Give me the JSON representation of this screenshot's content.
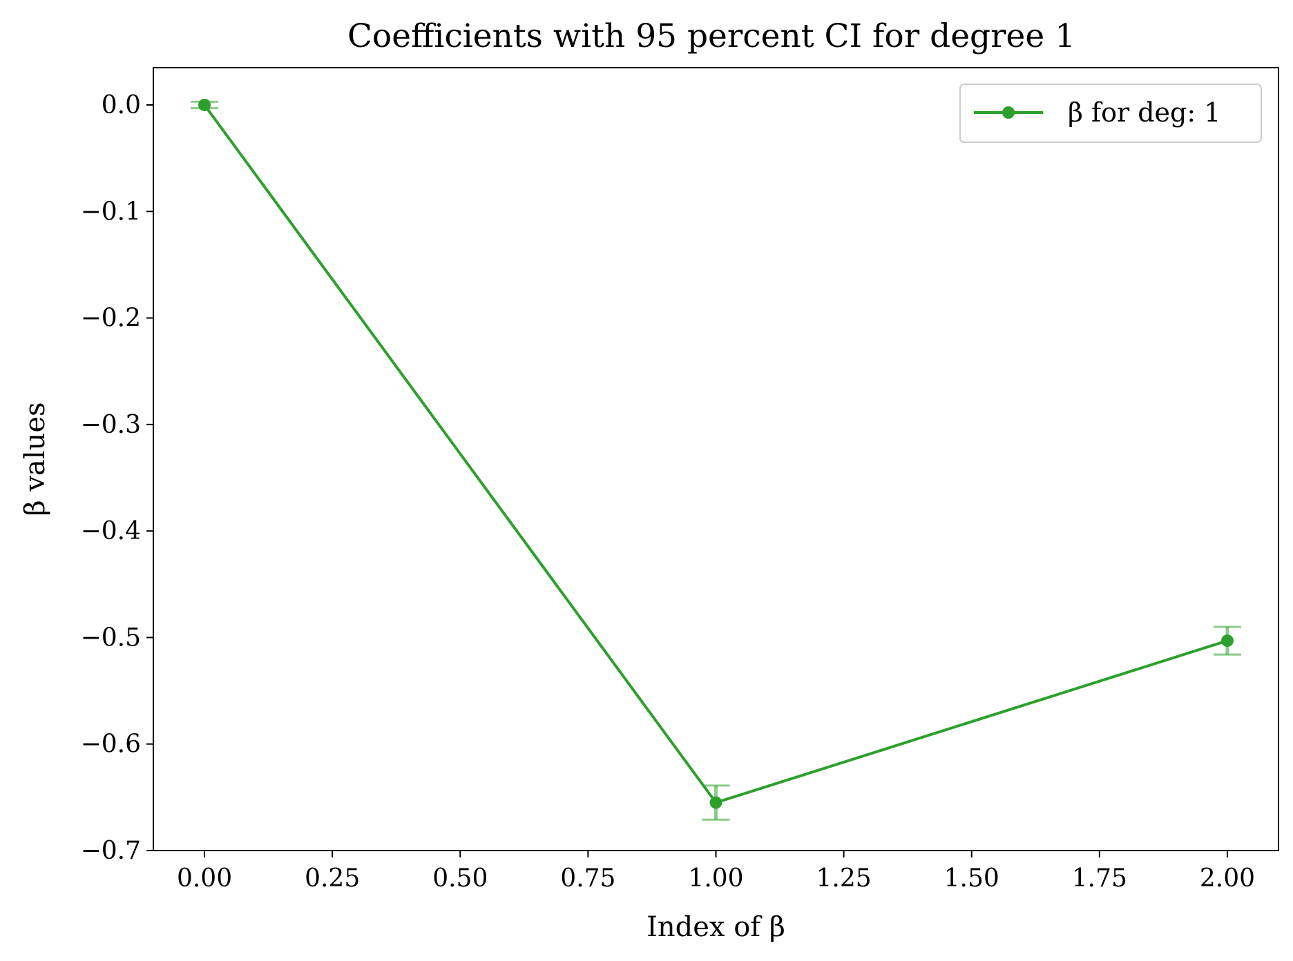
{
  "chart_data": {
    "type": "line",
    "title": "Coefficients with 95 percent CI for degree 1",
    "xlabel": "Index of β",
    "ylabel": "β values",
    "xlim": [
      -0.1,
      2.1
    ],
    "ylim": [
      -0.7,
      0.035
    ],
    "x_ticks": [
      0.0,
      0.25,
      0.5,
      0.75,
      1.0,
      1.25,
      1.5,
      1.75,
      2.0
    ],
    "x_tick_labels": [
      "0.00",
      "0.25",
      "0.50",
      "0.75",
      "1.00",
      "1.25",
      "1.50",
      "1.75",
      "2.00"
    ],
    "y_ticks": [
      0.0,
      -0.1,
      -0.2,
      -0.3,
      -0.4,
      -0.5,
      -0.6,
      -0.7
    ],
    "y_tick_labels": [
      "0.0",
      "−0.1",
      "−0.2",
      "−0.3",
      "−0.4",
      "−0.5",
      "−0.6",
      "−0.7"
    ],
    "grid": false,
    "legend_position": "top-right",
    "series": [
      {
        "name": "β for deg: 1",
        "color": "#2ca02c",
        "marker": "circle",
        "x": [
          0,
          1,
          2
        ],
        "y": [
          0.0,
          -0.655,
          -0.503
        ],
        "ci_low": [
          -0.003,
          -0.671,
          -0.516
        ],
        "ci_high": [
          0.003,
          -0.639,
          -0.49
        ]
      }
    ]
  }
}
